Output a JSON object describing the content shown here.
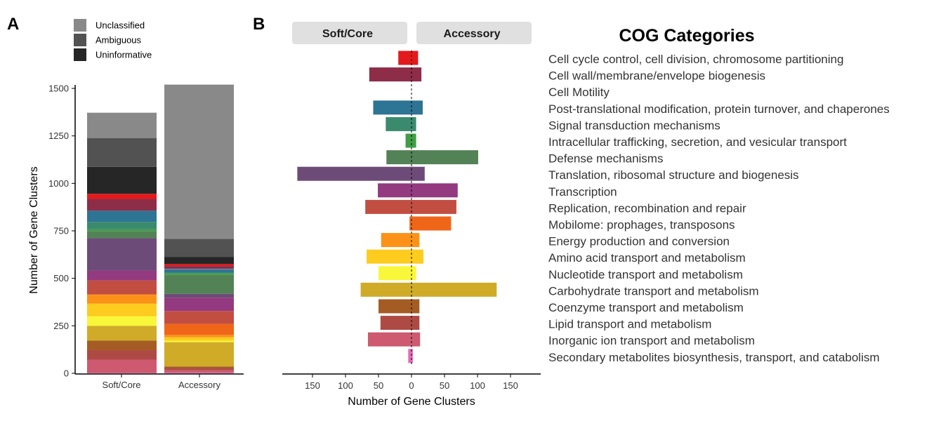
{
  "colors": {
    "Unclassified": "#898989",
    "Ambiguous": "#525252",
    "Uninformative": "#262626",
    "Cell cycle control, cell division, chromosome partitioning": "#e31a1c",
    "Cell wall/membrane/envelope biogenesis": "#8e2d48",
    "Cell Motility": "#c8c8c8",
    "Post-translational modification, protein turnover, and chaperones": "#2e7494",
    "Signal transduction mechanisms": "#3a8a6e",
    "Intracellular trafficking, secretion, and vesicular transport": "#3f9e45",
    "Defense mechanisms": "#548257",
    "Translation, ribosomal structure and biogenesis": "#6d4b78",
    "Transcription": "#933a80",
    "Replication, recombination and repair": "#c24e42",
    "Mobilome: prophages, transposons": "#ef6619",
    "Energy production and conversion": "#fb9217",
    "Amino acid transport and metabolism": "#fecb1f",
    "Nucleotide transport and metabolism": "#f9f73a",
    "Carbohydrate transport and metabolism": "#cfab28",
    "Coenzyme transport and metabolism": "#a45c24",
    "Lipid transport and metabolism": "#ad4a44",
    "Inorganic ion transport and metabolism": "#cd5a70",
    "Secondary metabolites biosynthesis, transport, and catabolism": "#e86ab6"
  },
  "chart_data": [
    {
      "panel": "A",
      "type": "bar",
      "stacked": true,
      "categories": [
        "Soft/Core",
        "Accessory"
      ],
      "ylabel": "Number of Gene Clusters",
      "ylim": [
        0,
        1500
      ],
      "yticks": [
        0,
        250,
        500,
        750,
        1000,
        1250,
        1500
      ],
      "legend": [
        "Unclassified",
        "Ambiguous",
        "Uninformative"
      ],
      "legend_position": "top-left",
      "grid": false,
      "stack_order_bottom_to_top": [
        "Inorganic ion transport and metabolism",
        "Lipid transport and metabolism",
        "Coenzyme transport and metabolism",
        "Carbohydrate transport and metabolism",
        "Nucleotide transport and metabolism",
        "Amino acid transport and metabolism",
        "Energy production and conversion",
        "Mobilome: prophages, transposons",
        "Replication, recombination and repair",
        "Transcription",
        "Translation, ribosomal structure and biogenesis",
        "Defense mechanisms",
        "Intracellular trafficking, secretion, and vesicular transport",
        "Signal transduction mechanisms",
        "Post-translational modification, protein turnover, and chaperones",
        "Cell Motility",
        "Cell wall/membrane/envelope biogenesis",
        "Cell cycle control, cell division, chromosome partitioning",
        "Uninformative",
        "Ambiguous",
        "Unclassified"
      ],
      "series": [
        {
          "name": "Secondary metabolites biosynthesis, transport, and catabolism",
          "values": [
            2,
            4
          ]
        },
        {
          "name": "Inorganic ion transport and metabolism",
          "values": [
            70,
            12
          ]
        },
        {
          "name": "Lipid transport and metabolism",
          "values": [
            50,
            10
          ]
        },
        {
          "name": "Coenzyme transport and metabolism",
          "values": [
            50,
            10
          ]
        },
        {
          "name": "Carbohydrate transport and metabolism",
          "values": [
            78,
            128
          ]
        },
        {
          "name": "Nucleotide transport and metabolism",
          "values": [
            50,
            8
          ]
        },
        {
          "name": "Amino acid transport and metabolism",
          "values": [
            67,
            18
          ]
        },
        {
          "name": "Energy production and conversion",
          "values": [
            46,
            12
          ]
        },
        {
          "name": "Mobilome: prophages, transposons",
          "values": [
            3,
            58
          ]
        },
        {
          "name": "Replication, recombination and repair",
          "values": [
            73,
            68
          ]
        },
        {
          "name": "Transcription",
          "values": [
            52,
            70
          ]
        },
        {
          "name": "Translation, ribosomal structure and biogenesis",
          "values": [
            170,
            20
          ]
        },
        {
          "name": "Defense mechanisms",
          "values": [
            38,
            100
          ]
        },
        {
          "name": "Intracellular trafficking, secretion, and vesicular transport",
          "values": [
            9,
            7
          ]
        },
        {
          "name": "Signal transduction mechanisms",
          "values": [
            39,
            7
          ]
        },
        {
          "name": "Post-translational modification, protein turnover, and chaperones",
          "values": [
            59,
            17
          ]
        },
        {
          "name": "Cell Motility",
          "values": [
            0,
            1
          ]
        },
        {
          "name": "Cell wall/membrane/envelope biogenesis",
          "values": [
            62,
            15
          ]
        },
        {
          "name": "Cell cycle control, cell division, chromosome partitioning",
          "values": [
            27,
            10
          ]
        },
        {
          "name": "Uninformative",
          "values": [
            142,
            38
          ]
        },
        {
          "name": "Ambiguous",
          "values": [
            152,
            95
          ]
        },
        {
          "name": "Unclassified",
          "values": [
            133,
            812
          ]
        }
      ]
    },
    {
      "panel": "B",
      "type": "bar",
      "orientation": "horizontal",
      "diverging": true,
      "facets": [
        "Soft/Core",
        "Accessory"
      ],
      "xlabel": "Number of Gene Clusters",
      "xticks": [
        150,
        100,
        50,
        0,
        50,
        100,
        150
      ],
      "xlim": [
        -195,
        195
      ],
      "legend_title": "COG Categories",
      "categories": [
        "Cell cycle control, cell division, chromosome partitioning",
        "Cell wall/membrane/envelope biogenesis",
        "Cell Motility",
        "Post-translational modification, protein turnover, and chaperones",
        "Signal transduction mechanisms",
        "Intracellular trafficking, secretion, and vesicular transport",
        "Defense mechanisms",
        "Translation, ribosomal structure and biogenesis",
        "Transcription",
        "Replication, recombination and repair",
        "Mobilome: prophages, transposons",
        "Energy production and conversion",
        "Amino acid transport and metabolism",
        "Nucleotide transport and metabolism",
        "Carbohydrate transport and metabolism",
        "Coenzyme transport and metabolism",
        "Lipid transport and metabolism",
        "Inorganic ion transport and metabolism",
        "Secondary metabolites biosynthesis, transport, and catabolism"
      ],
      "series": [
        {
          "name": "Soft/Core",
          "values": [
            20,
            64,
            0,
            58,
            39,
            9,
            38,
            173,
            51,
            70,
            3,
            46,
            68,
            50,
            77,
            50,
            47,
            66,
            5
          ]
        },
        {
          "name": "Accessory",
          "values": [
            10,
            15,
            0,
            17,
            7,
            7,
            101,
            20,
            70,
            68,
            60,
            12,
            18,
            7,
            129,
            12,
            12,
            13,
            2
          ]
        }
      ]
    }
  ]
}
